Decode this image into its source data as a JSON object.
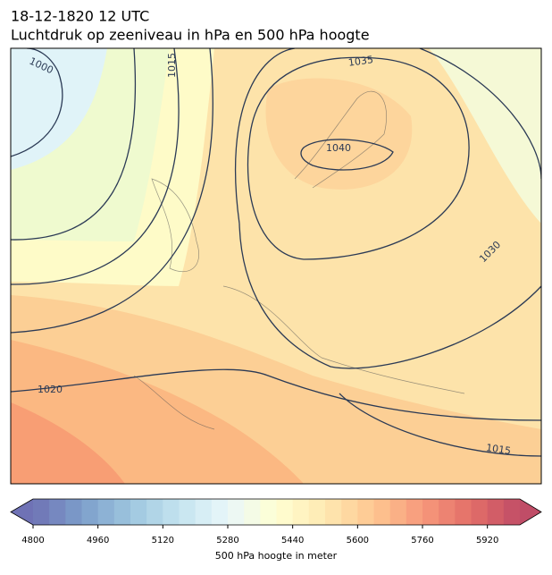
{
  "header": {
    "date": "18-12-1820 12 UTC",
    "title": "Luchtdruk op zeeniveau in hPa en 500 hPa hoogte"
  },
  "isobar_labels": [
    1000,
    1015,
    1035,
    1040,
    1030,
    1020,
    1015
  ],
  "colorbar": {
    "range": [
      4800,
      6000
    ],
    "ticks": [
      4800,
      4960,
      5120,
      5280,
      5440,
      5600,
      5760,
      5920
    ],
    "label": "500 hPa hoogte in meter"
  }
}
